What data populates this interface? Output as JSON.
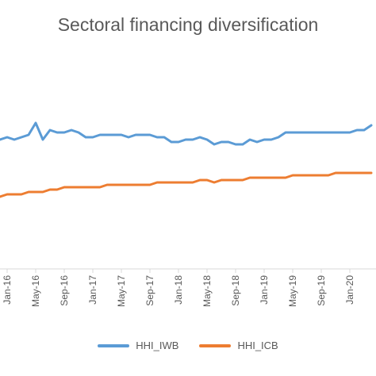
{
  "chart_data": {
    "type": "line",
    "title": "Sectoral financing diversification",
    "xlabel": "",
    "ylabel": "",
    "x": [
      "Dec-15",
      "Jan-16",
      "Feb-16",
      "Mar-16",
      "Apr-16",
      "May-16",
      "Jun-16",
      "Jul-16",
      "Aug-16",
      "Sep-16",
      "Oct-16",
      "Nov-16",
      "Dec-16",
      "Jan-17",
      "Feb-17",
      "Mar-17",
      "Apr-17",
      "May-17",
      "Jun-17",
      "Jul-17",
      "Aug-17",
      "Sep-17",
      "Oct-17",
      "Nov-17",
      "Dec-17",
      "Jan-18",
      "Feb-18",
      "Mar-18",
      "Apr-18",
      "May-18",
      "Jun-18",
      "Jul-18",
      "Aug-18",
      "Sep-18",
      "Oct-18",
      "Nov-18",
      "Dec-18",
      "Jan-19",
      "Feb-19",
      "Mar-19",
      "Apr-19",
      "May-19",
      "Jun-19",
      "Jul-19",
      "Aug-19",
      "Sep-19",
      "Oct-19",
      "Nov-19",
      "Dec-19",
      "Jan-20",
      "Feb-20",
      "Mar-20",
      "Apr-20"
    ],
    "x_tick_labels": [
      "Jan-16",
      "May-16",
      "Sep-16",
      "Jan-17",
      "May-17",
      "Sep-17",
      "Jan-18",
      "May-18",
      "Sep-18",
      "Jan-19",
      "May-19",
      "Sep-19",
      "Jan-20"
    ],
    "series": [
      {
        "name": "HHI_IWB",
        "color": "#5B9BD5",
        "values": [
          58,
          59,
          58,
          59,
          60,
          65,
          58,
          62,
          61,
          61,
          62,
          61,
          59,
          59,
          60,
          60,
          60,
          60,
          59,
          60,
          60,
          60,
          59,
          59,
          57,
          57,
          58,
          58,
          59,
          58,
          56,
          57,
          57,
          56,
          56,
          58,
          57,
          58,
          58,
          59,
          61,
          61,
          61,
          61,
          61,
          61,
          61,
          61,
          61,
          61,
          62,
          62,
          64
        ]
      },
      {
        "name": "HHI_ICB",
        "color": "#ED7D31",
        "values": [
          34,
          35,
          35,
          35,
          36,
          36,
          36,
          37,
          37,
          38,
          38,
          38,
          38,
          38,
          38,
          39,
          39,
          39,
          39,
          39,
          39,
          39,
          40,
          40,
          40,
          40,
          40,
          40,
          41,
          41,
          40,
          41,
          41,
          41,
          41,
          42,
          42,
          42,
          42,
          42,
          42,
          43,
          43,
          43,
          43,
          43,
          43,
          44,
          44,
          44,
          44,
          44,
          44
        ]
      }
    ]
  },
  "legend": {
    "items": [
      {
        "label": "HHI_IWB",
        "color": "#5B9BD5"
      },
      {
        "label": "HHI_ICB",
        "color": "#ED7D31"
      }
    ]
  }
}
